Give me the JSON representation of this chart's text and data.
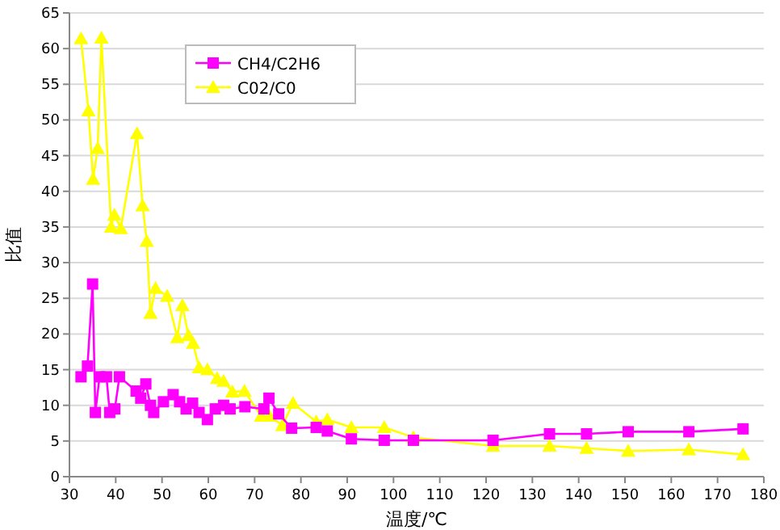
{
  "chart_data": {
    "type": "line",
    "xlabel": "温度/℃",
    "ylabel": "比值",
    "xlim": [
      30,
      180
    ],
    "xticks": [
      30,
      40,
      50,
      60,
      70,
      80,
      90,
      100,
      110,
      120,
      130,
      140,
      150,
      160,
      170,
      180
    ],
    "ylim": [
      0,
      65
    ],
    "yticks": [
      0,
      5,
      10,
      15,
      20,
      25,
      30,
      35,
      40,
      45,
      50,
      55,
      60,
      65
    ],
    "grid": "y",
    "legend": "top left",
    "series": [
      {
        "name": "CH4/C2H6",
        "color": "#ff00ff",
        "marker": "square",
        "x": [
          32.5,
          33.9,
          35,
          35.6,
          36.5,
          38,
          38.7,
          39.8,
          40.8,
          44.4,
          45.4,
          46.5,
          47.5,
          48.2,
          50.3,
          52.4,
          53.8,
          55.2,
          56.6,
          58,
          59.8,
          61.5,
          63.3,
          64.7,
          67.9,
          72,
          73.1,
          75.2,
          78,
          83.3,
          85.7,
          90.9,
          98,
          104.3,
          121.5,
          133.7,
          141.7,
          150.7,
          163.8,
          175.5
        ],
        "values": [
          14,
          15.5,
          27,
          9,
          14,
          14,
          9,
          9.5,
          14,
          12,
          11,
          13,
          10,
          9,
          10.5,
          11.5,
          10.5,
          9.5,
          10.3,
          9,
          8,
          9.5,
          10,
          9.5,
          9.8,
          9.5,
          11,
          8.8,
          6.8,
          6.9,
          6.4,
          5.3,
          5.1,
          5.1,
          5.1,
          6,
          6,
          6.3,
          6.3,
          6.7
        ]
      },
      {
        "name": "C02/C0",
        "color": "#ffff00",
        "marker": "triangle",
        "x": [
          32.5,
          34.1,
          35.1,
          36.1,
          36.9,
          39,
          39.7,
          41.1,
          44.6,
          45.8,
          46.7,
          47.5,
          48.6,
          51.1,
          53.3,
          54.4,
          55.7,
          56.7,
          58,
          59.8,
          61.9,
          63.3,
          65.2,
          67.8,
          71.4,
          73.2,
          76,
          78.3,
          83.3,
          85.7,
          90.9,
          98,
          104.3,
          121.5,
          133.7,
          141.7,
          150.7,
          163.8,
          175.5
        ],
        "values": [
          61.4,
          51.3,
          41.7,
          46,
          61.5,
          35,
          36.7,
          34.8,
          48.1,
          38,
          33,
          22.9,
          26.4,
          25.3,
          19.5,
          24,
          19.8,
          18.7,
          15.3,
          15,
          13.8,
          13.4,
          11.9,
          12,
          8.5,
          8.5,
          7.2,
          10.3,
          7.7,
          8,
          6.9,
          6.9,
          5.5,
          4.3,
          4.3,
          4,
          3.6,
          3.8,
          3.1
        ]
      }
    ]
  }
}
